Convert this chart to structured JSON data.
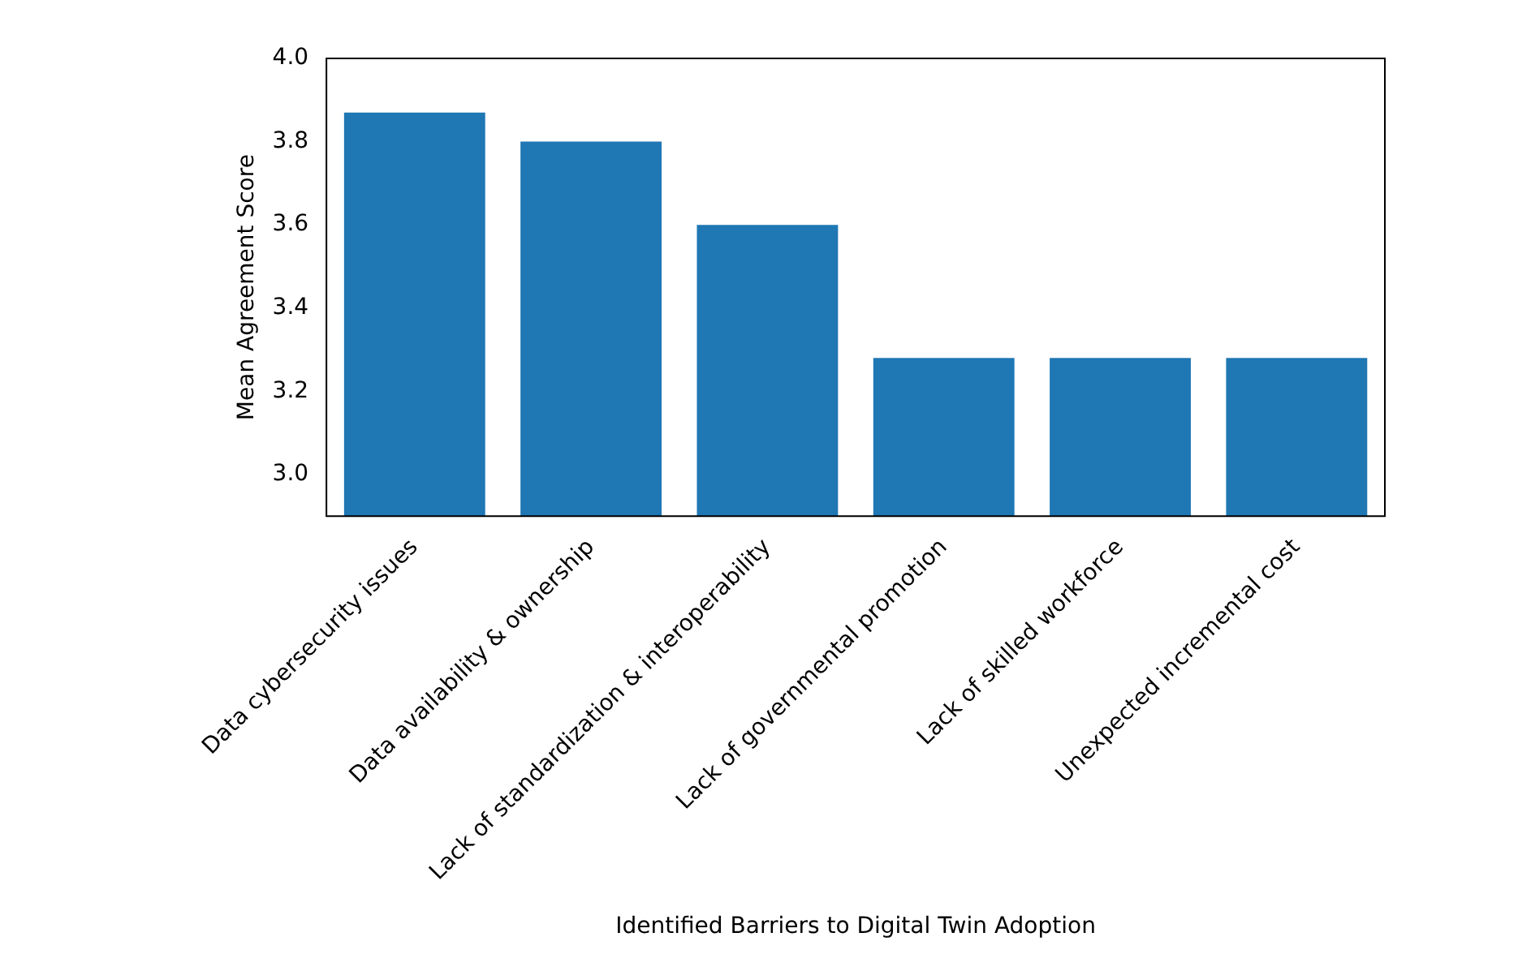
{
  "chart_data": {
    "type": "bar",
    "xlabel": "Identified Barriers to Digital Twin Adoption",
    "ylabel": "Mean Agreement Score",
    "categories": [
      "Data cybersecurity issues",
      "Data availability & ownership",
      "Lack of standardization & interoperability",
      "Lack of governmental promotion",
      "Lack of skilled workforce",
      "Unexpected incremental cost"
    ],
    "values": [
      3.87,
      3.8,
      3.6,
      3.28,
      3.28,
      3.28
    ],
    "color": "#1f77b4",
    "ylim": [
      2.9,
      4.0
    ],
    "yticks": [
      {
        "value": 3.0,
        "label": "3.0"
      },
      3.2,
      3.4,
      3.6,
      3.8,
      {
        "value": 4.0,
        "label": "4.0"
      }
    ],
    "grid": false,
    "legend": false
  }
}
